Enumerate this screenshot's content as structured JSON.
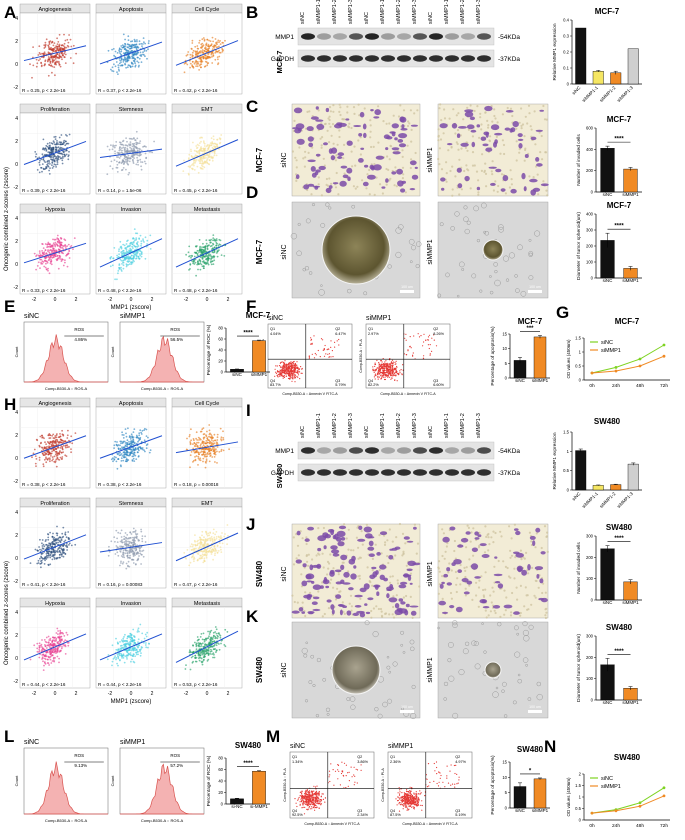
{
  "figure": {
    "panel_letters": [
      "A",
      "B",
      "C",
      "D",
      "E",
      "F",
      "G",
      "H",
      "I",
      "J",
      "K",
      "L",
      "M",
      "N"
    ]
  },
  "colors": {
    "angiogenesis": "#c0392b",
    "apoptosis": "#2e86c1",
    "cell_cycle": "#e67e22",
    "proliferation": "#2c4f7c",
    "stemness": "#8d99ae",
    "emt": "#f4e09a",
    "hypoxia": "#e84393",
    "invasion": "#4dd0e1",
    "metastasis": "#26a269",
    "fit_line": "#1f4fd1",
    "bar_black": "#111111",
    "bar_orange": "#f08a24",
    "line_green": "#7ed321",
    "line_orange": "#f08a24",
    "flow_red": "#e53935",
    "histo_fill": "#f4b2b2",
    "histo_line": "#d9534f",
    "stain_purple": "#7b4ba8",
    "phase_bg": "#d8d8d8"
  },
  "shared": {
    "ylabel_scatter": "Oncogenic combined z-scores (zscore)",
    "xlabel_scatter": "MMP1 (zscore)",
    "xticks_scatter": [
      "-2",
      "0",
      "2"
    ],
    "yticks_scatter": [
      "4",
      "2",
      "0",
      "-2"
    ],
    "groups": [
      "siNC",
      "siMMP1"
    ],
    "wb_lanes": [
      "siNC",
      "siMMP1-1",
      "siMMP1-2",
      "siMMP1-3",
      "siNC",
      "siMMP1-1",
      "siMMP1-2",
      "siMMP1-3",
      "siNC",
      "siMMP1-1",
      "siMMP1-2",
      "siMMP1-3"
    ],
    "wb_bands": [
      {
        "name": "MMP1",
        "kda": "-54KDa"
      },
      {
        "name": "GAPDH",
        "kda": "-37KDa"
      }
    ],
    "flow_xlabel": "Comp-B530-A :: ROS-A",
    "flow_ylabel": "Count",
    "flow_marker": "ROS",
    "apop_xlabel": "Comp-B530-A :: Annexin V FITC-A",
    "apop_ylabel": "Comp-B530-A :: PI-A",
    "scale_bar": "100 um"
  },
  "mcf7": {
    "cell_line": "MCF-7",
    "scatter_panels": [
      {
        "title": "Angiogenesis",
        "stats": "R = 0.25, p < 2.2e-16",
        "color_key": "angiogenesis"
      },
      {
        "title": "Apoptosis",
        "stats": "R = 0.37, p < 2.2e-16",
        "color_key": "apoptosis"
      },
      {
        "title": "Cell Cycle",
        "stats": "R = 0.42, p < 2.2e-16",
        "color_key": "cell_cycle"
      },
      {
        "title": "Proliferation",
        "stats": "R = 0.39, p < 2.2e-16",
        "color_key": "proliferation"
      },
      {
        "title": "Stemness",
        "stats": "R = 0.14, p = 1.5e-06",
        "color_key": "stemness"
      },
      {
        "title": "EMT",
        "stats": "R = 0.45, p < 2.2e-16",
        "color_key": "emt"
      },
      {
        "title": "Hypoxia",
        "stats": "R = 0.33, p < 2.2e-16",
        "color_key": "hypoxia"
      },
      {
        "title": "Invasion",
        "stats": "R = 0.48, p < 2.2e-16",
        "color_key": "invasion"
      },
      {
        "title": "Metastasis",
        "stats": "R = 0.48, p < 2.2e-16",
        "color_key": "metastasis"
      }
    ],
    "flow": {
      "sinc_pct": "4.86%",
      "simmp1_pct": "56.5%"
    },
    "apop_quadrants": {
      "sinc": {
        "q1": "4.04%",
        "q2": "6.47%",
        "q3": "5.79%",
        "q4": "83.7%"
      },
      "simmp1": {
        "q1": "2.97%",
        "q2": "8.26%",
        "q3": "6.60%",
        "q4": "82.2%"
      }
    }
  },
  "sw480": {
    "cell_line": "SW480",
    "scatter_panels": [
      {
        "title": "Angiogenesis",
        "stats": "R = 0.38, p < 2.2e-16",
        "color_key": "angiogenesis"
      },
      {
        "title": "Apoptosis",
        "stats": "R = 0.38, p < 2.2e-16",
        "color_key": "apoptosis"
      },
      {
        "title": "Cell Cycle",
        "stats": "R = 0.18, p = 0.00018",
        "color_key": "cell_cycle"
      },
      {
        "title": "Proliferation",
        "stats": "R = 0.41, p < 2.2e-16",
        "color_key": "proliferation"
      },
      {
        "title": "Stemness",
        "stats": "R = 0.16, p = 0.00083",
        "color_key": "stemness"
      },
      {
        "title": "EMT",
        "stats": "R = 0.47, p < 2.2e-16",
        "color_key": "emt"
      },
      {
        "title": "Hypoxia",
        "stats": "R = 0.44, p < 2.2e-16",
        "color_key": "hypoxia"
      },
      {
        "title": "Invasion",
        "stats": "R = 0.44, p < 2.2e-16",
        "color_key": "invasion"
      },
      {
        "title": "Metastasis",
        "stats": "R = 0.53, p < 2.2e-16",
        "color_key": "metastasis"
      }
    ],
    "flow": {
      "sinc_pct": "9.13%",
      "simmp1_pct": "57.2%"
    },
    "apop_quadrants": {
      "sinc": {
        "q1": "1.34%",
        "q2": "3.86%",
        "q3": "2.34%",
        "q4": "92.5%"
      },
      "simmp1": {
        "q1": "2.36%",
        "q2": "4.97%",
        "q3": "5.19%",
        "q4": "87.5%"
      }
    }
  },
  "chart_data": [
    {
      "id": "mcf7_wb",
      "type": "bar",
      "title": "MCF-7",
      "ylabel": "Relative MMP1 expression",
      "categories": [
        "siNC",
        "siMMP1-1",
        "siMMP1-2",
        "siMMP1-3"
      ],
      "values": [
        0.35,
        0.08,
        0.07,
        0.22
      ],
      "errors": [
        0,
        0.005,
        0.01,
        0
      ],
      "ylim": [
        0,
        0.4
      ],
      "yticks": [
        0,
        0.1,
        0.2,
        0.3,
        0.4
      ],
      "sig": "",
      "colors": [
        "bar_black",
        "bar_yellow",
        "bar_orange",
        "bar_grey"
      ]
    },
    {
      "id": "mcf7_invasion",
      "type": "bar",
      "title": "MCF-7",
      "ylabel": "Number of invaded cells",
      "categories": [
        "siNC",
        "siMMP1"
      ],
      "values": [
        410,
        215
      ],
      "errors": [
        20,
        15
      ],
      "ylim": [
        0,
        600
      ],
      "yticks": [
        0,
        200,
        400,
        600
      ],
      "sig": "****",
      "colors": [
        "bar_black",
        "bar_orange"
      ]
    },
    {
      "id": "mcf7_sphere",
      "type": "bar",
      "title": "MCF-7",
      "ylabel": "Diameter of tumor spheroid(um)",
      "categories": [
        "siNC",
        "siMMP1"
      ],
      "values": [
        235,
        60
      ],
      "errors": [
        45,
        12
      ],
      "ylim": [
        0,
        400
      ],
      "yticks": [
        0,
        100,
        200,
        300,
        400
      ],
      "sig": "****",
      "colors": [
        "bar_black",
        "bar_orange"
      ]
    },
    {
      "id": "mcf7_ros",
      "type": "bar",
      "title": "MCF-7",
      "ylabel": "Percentage of ROC (%)",
      "categories": [
        "siNC",
        "siMMP1"
      ],
      "values": [
        5,
        57
      ],
      "errors": [
        0.5,
        1
      ],
      "ylim": [
        0,
        80
      ],
      "yticks": [
        0,
        20,
        40,
        60,
        80
      ],
      "sig": "****",
      "colors": [
        "bar_black",
        "bar_orange"
      ]
    },
    {
      "id": "mcf7_apop",
      "type": "bar",
      "title": "MCF-7",
      "ylabel": "Percentage of apoptosis(%)",
      "categories": [
        "siNC",
        "siMMP1"
      ],
      "values": [
        6,
        14
      ],
      "errors": [
        1,
        0.5
      ],
      "ylim": [
        0,
        15
      ],
      "yticks": [
        0,
        5,
        10,
        15
      ],
      "sig": "***",
      "colors": [
        "bar_black",
        "bar_orange"
      ]
    },
    {
      "id": "mcf7_growth",
      "type": "line",
      "title": "MCF-7",
      "ylabel": "OD values (450nm)",
      "categories": [
        "0h",
        "24h",
        "48h",
        "72h"
      ],
      "series": [
        {
          "name": "siNC",
          "values": [
            0.25,
            0.45,
            0.75,
            1.25
          ],
          "color": "line_green"
        },
        {
          "name": "siMMP1",
          "values": [
            0.25,
            0.32,
            0.5,
            0.85
          ],
          "color": "line_orange"
        }
      ],
      "ylim": [
        0,
        1.5
      ],
      "yticks": [
        0,
        0.5,
        1.0,
        1.5
      ]
    },
    {
      "id": "sw480_wb",
      "type": "bar",
      "title": "SW480",
      "ylabel": "Relative MMP1 expression",
      "categories": [
        "siNC",
        "siMMP1-1",
        "siMMP1-2",
        "siMMP1-3"
      ],
      "values": [
        1.02,
        0.12,
        0.14,
        0.67
      ],
      "errors": [
        0.04,
        0.01,
        0.01,
        0.03
      ],
      "ylim": [
        0,
        1.5
      ],
      "yticks": [
        0,
        0.5,
        1.0,
        1.5
      ],
      "sig": "",
      "colors": [
        "bar_black",
        "bar_yellow",
        "bar_orange",
        "bar_grey"
      ]
    },
    {
      "id": "sw480_invasion",
      "type": "bar",
      "title": "SW480",
      "ylabel": "Number of invaded cells",
      "categories": [
        "siNC",
        "siMMP1"
      ],
      "values": [
        240,
        85
      ],
      "errors": [
        15,
        10
      ],
      "ylim": [
        0,
        300
      ],
      "yticks": [
        0,
        100,
        200,
        300
      ],
      "sig": "****",
      "colors": [
        "bar_black",
        "bar_orange"
      ]
    },
    {
      "id": "sw480_sphere",
      "type": "bar",
      "title": "SW480",
      "ylabel": "Diameter of tumor spheroid(um)",
      "categories": [
        "siNC",
        "siMMP1"
      ],
      "values": [
        165,
        55
      ],
      "errors": [
        30,
        8
      ],
      "ylim": [
        0,
        300
      ],
      "yticks": [
        0,
        100,
        200,
        300
      ],
      "sig": "****",
      "colors": [
        "bar_black",
        "bar_orange"
      ]
    },
    {
      "id": "sw480_ros",
      "type": "bar",
      "title": "SW480",
      "ylabel": "Percentage of ROC (%)",
      "categories": [
        "si-NC",
        "si-MMP1"
      ],
      "values": [
        9,
        57
      ],
      "errors": [
        1,
        1
      ],
      "ylim": [
        0,
        80
      ],
      "yticks": [
        0,
        20,
        40,
        60,
        80
      ],
      "sig": "****",
      "colors": [
        "bar_black",
        "bar_orange"
      ]
    },
    {
      "id": "sw480_apop",
      "type": "bar",
      "title": "SW480",
      "ylabel": "Percentage of apoptosis(%)",
      "categories": [
        "siNC",
        "siMMP1"
      ],
      "values": [
        7,
        9.5
      ],
      "errors": [
        1.2,
        0.3
      ],
      "ylim": [
        0,
        15
      ],
      "yticks": [
        0,
        5,
        10,
        15
      ],
      "sig": "*",
      "colors": [
        "bar_black",
        "bar_orange"
      ]
    },
    {
      "id": "sw480_growth",
      "type": "line",
      "title": "SW480",
      "ylabel": "OD values (450nm)",
      "categories": [
        "0h",
        "24h",
        "48h",
        "72h"
      ],
      "series": [
        {
          "name": "siNC",
          "values": [
            0.3,
            0.45,
            0.75,
            1.4
          ],
          "color": "line_green"
        },
        {
          "name": "siMMP1",
          "values": [
            0.3,
            0.4,
            0.6,
            1.05
          ],
          "color": "line_orange"
        }
      ],
      "ylim": [
        0,
        2.0
      ],
      "yticks": [
        0,
        0.5,
        1.0,
        1.5,
        2.0
      ]
    }
  ]
}
